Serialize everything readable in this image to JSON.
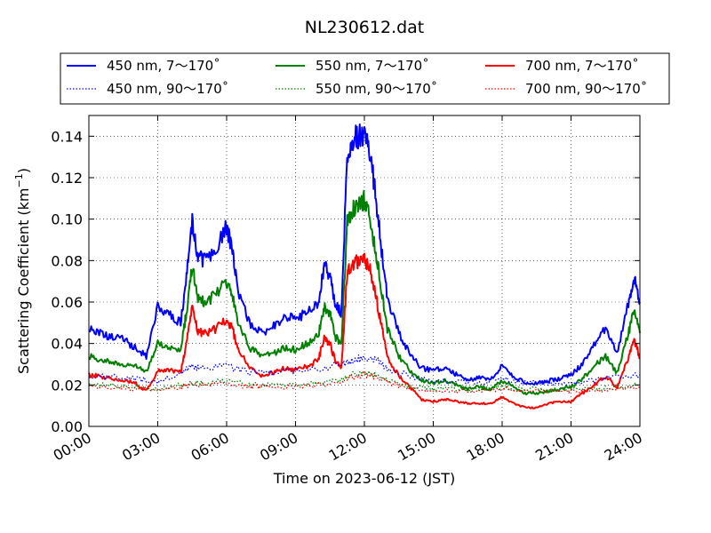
{
  "chart_data": {
    "type": "line",
    "title": "NL230612.dat",
    "xlabel": "Time on 2023-06-12 (JST)",
    "ylabel": "Scattering Coefficient (km",
    "ylabel_sup": "−1",
    "ylabel_end": ")",
    "xlim": [
      0,
      24
    ],
    "ylim": [
      0,
      0.15
    ],
    "x_ticks": [
      0,
      3,
      6,
      9,
      12,
      15,
      18,
      21,
      24
    ],
    "x_tick_labels": [
      "00:00",
      "03:00",
      "06:00",
      "09:00",
      "12:00",
      "15:00",
      "18:00",
      "21:00",
      "24:00"
    ],
    "y_ticks": [
      0,
      0.02,
      0.04,
      0.06,
      0.08,
      0.1,
      0.12,
      0.14
    ],
    "y_tick_labels": [
      "0.00",
      "0.02",
      "0.04",
      "0.06",
      "0.08",
      "0.10",
      "0.12",
      "0.14"
    ],
    "grid": true,
    "legend_position": "top",
    "series": [
      {
        "name": "450 nm, 7～170˚",
        "color": "#0000ff",
        "style": "solid",
        "x": [
          0,
          0.5,
          1,
          1.5,
          2,
          2.5,
          3,
          3.5,
          4,
          4.25,
          4.5,
          4.75,
          5,
          5.5,
          6,
          6.25,
          6.5,
          7,
          7.5,
          8,
          8.5,
          9,
          9.5,
          10,
          10.25,
          10.5,
          10.75,
          11,
          11.25,
          11.5,
          11.75,
          12,
          12.25,
          12.5,
          12.75,
          13,
          13.5,
          14,
          14.5,
          15,
          15.5,
          16,
          16.5,
          17,
          17.5,
          18,
          18.5,
          19,
          19.5,
          20,
          20.5,
          21,
          21.5,
          22,
          22.5,
          23,
          23.5,
          23.75,
          24
        ],
        "y": [
          0.048,
          0.045,
          0.043,
          0.042,
          0.038,
          0.034,
          0.058,
          0.054,
          0.05,
          0.072,
          0.1,
          0.082,
          0.08,
          0.085,
          0.096,
          0.085,
          0.065,
          0.05,
          0.045,
          0.048,
          0.053,
          0.052,
          0.055,
          0.06,
          0.078,
          0.072,
          0.058,
          0.055,
          0.13,
          0.138,
          0.14,
          0.142,
          0.132,
          0.11,
          0.085,
          0.062,
          0.045,
          0.035,
          0.028,
          0.027,
          0.028,
          0.025,
          0.022,
          0.024,
          0.023,
          0.029,
          0.024,
          0.021,
          0.021,
          0.022,
          0.023,
          0.025,
          0.03,
          0.04,
          0.047,
          0.035,
          0.06,
          0.072,
          0.06
        ]
      },
      {
        "name": "550 nm, 7～170˚",
        "color": "#008000",
        "style": "solid",
        "x": [
          0,
          0.5,
          1,
          1.5,
          2,
          2.5,
          3,
          3.5,
          4,
          4.25,
          4.5,
          4.75,
          5,
          5.5,
          6,
          6.25,
          6.5,
          7,
          7.5,
          8,
          8.5,
          9,
          9.5,
          10,
          10.25,
          10.5,
          10.75,
          11,
          11.25,
          11.5,
          11.75,
          12,
          12.25,
          12.5,
          12.75,
          13,
          13.5,
          14,
          14.5,
          15,
          15.5,
          16,
          16.5,
          17,
          17.5,
          18,
          18.5,
          19,
          19.5,
          20,
          20.5,
          21,
          21.5,
          22,
          22.5,
          23,
          23.5,
          23.75,
          24
        ],
        "y": [
          0.034,
          0.032,
          0.031,
          0.03,
          0.029,
          0.026,
          0.04,
          0.038,
          0.037,
          0.055,
          0.078,
          0.062,
          0.06,
          0.063,
          0.07,
          0.063,
          0.05,
          0.038,
          0.034,
          0.035,
          0.038,
          0.037,
          0.04,
          0.044,
          0.058,
          0.054,
          0.043,
          0.04,
          0.098,
          0.104,
          0.107,
          0.109,
          0.1,
          0.084,
          0.065,
          0.047,
          0.034,
          0.027,
          0.022,
          0.021,
          0.022,
          0.02,
          0.018,
          0.019,
          0.018,
          0.022,
          0.019,
          0.016,
          0.016,
          0.017,
          0.018,
          0.019,
          0.023,
          0.029,
          0.034,
          0.026,
          0.045,
          0.056,
          0.045
        ]
      },
      {
        "name": "700 nm, 7～170˚",
        "color": "#ff0000",
        "style": "solid",
        "x": [
          0,
          0.5,
          1,
          1.5,
          2,
          2.5,
          3,
          3.5,
          4,
          4.25,
          4.5,
          4.75,
          5,
          5.5,
          6,
          6.25,
          6.5,
          7,
          7.5,
          8,
          8.5,
          9,
          9.5,
          10,
          10.25,
          10.5,
          10.75,
          11,
          11.25,
          11.5,
          11.75,
          12,
          12.25,
          12.5,
          12.75,
          13,
          13.5,
          14,
          14.5,
          15,
          15.5,
          16,
          16.5,
          17,
          17.5,
          18,
          18.5,
          19,
          19.5,
          20,
          20.5,
          21,
          21.5,
          22,
          22.5,
          23,
          23.5,
          23.75,
          24
        ],
        "y": [
          0.025,
          0.024,
          0.023,
          0.022,
          0.021,
          0.017,
          0.027,
          0.027,
          0.026,
          0.04,
          0.058,
          0.046,
          0.045,
          0.047,
          0.052,
          0.047,
          0.037,
          0.028,
          0.025,
          0.026,
          0.028,
          0.027,
          0.029,
          0.032,
          0.043,
          0.04,
          0.031,
          0.028,
          0.074,
          0.078,
          0.08,
          0.081,
          0.075,
          0.063,
          0.048,
          0.034,
          0.024,
          0.019,
          0.013,
          0.012,
          0.013,
          0.012,
          0.011,
          0.011,
          0.011,
          0.014,
          0.011,
          0.009,
          0.009,
          0.011,
          0.012,
          0.012,
          0.016,
          0.02,
          0.024,
          0.019,
          0.033,
          0.042,
          0.033
        ]
      },
      {
        "name": "450 nm, 90～170˚",
        "color": "#0000ff",
        "style": "dotted",
        "x": [
          0,
          1,
          2,
          3,
          4,
          4.5,
          5,
          6,
          7,
          8,
          9,
          10,
          11,
          11.5,
          12,
          12.5,
          13,
          14,
          15,
          16,
          17,
          18,
          19,
          20,
          21,
          22,
          23,
          24
        ],
        "y": [
          0.024,
          0.024,
          0.023,
          0.022,
          0.026,
          0.029,
          0.028,
          0.029,
          0.026,
          0.026,
          0.027,
          0.028,
          0.03,
          0.032,
          0.033,
          0.032,
          0.028,
          0.024,
          0.022,
          0.022,
          0.021,
          0.023,
          0.021,
          0.021,
          0.021,
          0.022,
          0.024,
          0.025
        ]
      },
      {
        "name": "550 nm, 90～170˚",
        "color": "#008000",
        "style": "dotted",
        "x": [
          0,
          1,
          2,
          3,
          4,
          4.5,
          5,
          6,
          7,
          8,
          9,
          10,
          11,
          11.5,
          12,
          12.5,
          13,
          14,
          15,
          16,
          17,
          18,
          19,
          20,
          21,
          22,
          23,
          24
        ],
        "y": [
          0.02,
          0.02,
          0.019,
          0.018,
          0.02,
          0.021,
          0.021,
          0.022,
          0.02,
          0.02,
          0.02,
          0.021,
          0.022,
          0.025,
          0.026,
          0.025,
          0.022,
          0.019,
          0.018,
          0.018,
          0.018,
          0.019,
          0.018,
          0.018,
          0.018,
          0.018,
          0.019,
          0.02
        ]
      },
      {
        "name": "700 nm, 90～170˚",
        "color": "#ff0000",
        "style": "dotted",
        "x": [
          0,
          1,
          2,
          3,
          4,
          4.5,
          5,
          6,
          7,
          8,
          9,
          10,
          11,
          11.5,
          12,
          12.5,
          13,
          14,
          15,
          16,
          17,
          18,
          19,
          20,
          21,
          22,
          23,
          24
        ],
        "y": [
          0.019,
          0.019,
          0.018,
          0.017,
          0.019,
          0.02,
          0.02,
          0.021,
          0.019,
          0.019,
          0.019,
          0.02,
          0.021,
          0.024,
          0.025,
          0.024,
          0.021,
          0.018,
          0.017,
          0.017,
          0.017,
          0.018,
          0.017,
          0.017,
          0.017,
          0.017,
          0.018,
          0.019
        ]
      }
    ]
  }
}
